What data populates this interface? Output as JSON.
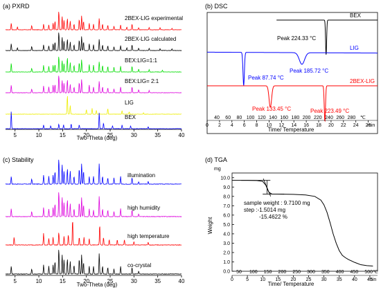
{
  "panels": {
    "a": {
      "label": "(a) PXRD",
      "xlabel": "Two-Theta (deg)",
      "xticks": [
        5,
        10,
        15,
        20,
        25,
        30,
        35,
        40
      ],
      "xlim": [
        3,
        40
      ],
      "traces": [
        {
          "name": "2BEX-LIG experimental",
          "color": "#ff0000",
          "peaks": [
            [
              4.2,
              0.35
            ],
            [
              5.5,
              0.15
            ],
            [
              8.5,
              0.22
            ],
            [
              11,
              0.3
            ],
            [
              12.1,
              0.25
            ],
            [
              13,
              0.35
            ],
            [
              13.4,
              0.45
            ],
            [
              14.2,
              1.0
            ],
            [
              14.9,
              0.7
            ],
            [
              15.3,
              0.5
            ],
            [
              16,
              0.6
            ],
            [
              16.6,
              0.45
            ],
            [
              17.4,
              0.3
            ],
            [
              18.5,
              0.55
            ],
            [
              19,
              0.75
            ],
            [
              19.4,
              0.45
            ],
            [
              20.6,
              0.35
            ],
            [
              21.5,
              0.3
            ],
            [
              22.7,
              0.6
            ],
            [
              23.4,
              0.3
            ],
            [
              24.5,
              0.25
            ],
            [
              25.8,
              0.2
            ],
            [
              27.2,
              0.25
            ],
            [
              28.5,
              0.15
            ],
            [
              29.6,
              0.3
            ],
            [
              31,
              0.12
            ],
            [
              33.2,
              0.12
            ],
            [
              35.5,
              0.1
            ],
            [
              38,
              0.08
            ]
          ]
        },
        {
          "name": "2BEX-LIG calculated",
          "color": "#000000",
          "peaks": [
            [
              4.2,
              0.35
            ],
            [
              5.5,
              0.15
            ],
            [
              8.5,
              0.22
            ],
            [
              11,
              0.3
            ],
            [
              12.1,
              0.25
            ],
            [
              13,
              0.35
            ],
            [
              13.4,
              0.45
            ],
            [
              14.2,
              1.0
            ],
            [
              14.9,
              0.7
            ],
            [
              15.3,
              0.5
            ],
            [
              16,
              0.6
            ],
            [
              16.6,
              0.45
            ],
            [
              17.4,
              0.3
            ],
            [
              18.5,
              0.55
            ],
            [
              19,
              0.75
            ],
            [
              19.4,
              0.45
            ],
            [
              20.6,
              0.35
            ],
            [
              21.5,
              0.3
            ],
            [
              22.7,
              0.6
            ],
            [
              23.4,
              0.3
            ],
            [
              24.5,
              0.25
            ],
            [
              25.8,
              0.2
            ],
            [
              27.2,
              0.25
            ],
            [
              28.5,
              0.15
            ],
            [
              29.6,
              0.3
            ],
            [
              31,
              0.12
            ],
            [
              33.2,
              0.12
            ],
            [
              35.5,
              0.1
            ],
            [
              38,
              0.08
            ]
          ]
        },
        {
          "name": "BEX:LIG=1:1",
          "color": "#00dd00",
          "peaks": [
            [
              4.2,
              0.45
            ],
            [
              8.5,
              0.2
            ],
            [
              11,
              0.35
            ],
            [
              12.1,
              0.3
            ],
            [
              13,
              0.35
            ],
            [
              13.4,
              0.4
            ],
            [
              14.2,
              0.85
            ],
            [
              14.9,
              0.6
            ],
            [
              15.3,
              0.45
            ],
            [
              16,
              0.75
            ],
            [
              16.6,
              0.5
            ],
            [
              17.4,
              0.35
            ],
            [
              18.5,
              0.5
            ],
            [
              19,
              0.65
            ],
            [
              20.6,
              0.4
            ],
            [
              21.5,
              0.35
            ],
            [
              22.7,
              0.55
            ],
            [
              23.4,
              0.35
            ],
            [
              24.5,
              0.3
            ],
            [
              25.8,
              0.25
            ],
            [
              27.2,
              0.3
            ],
            [
              29.6,
              0.3
            ],
            [
              31,
              0.15
            ],
            [
              33.2,
              0.12
            ],
            [
              36,
              0.1
            ]
          ]
        },
        {
          "name": "BEX:LIG= 2:1",
          "color": "#dd00dd",
          "peaks": [
            [
              4.2,
              0.4
            ],
            [
              8.5,
              0.2
            ],
            [
              11,
              0.35
            ],
            [
              12.1,
              0.3
            ],
            [
              13,
              0.4
            ],
            [
              13.4,
              0.45
            ],
            [
              14.2,
              0.95
            ],
            [
              14.9,
              0.65
            ],
            [
              15.3,
              0.5
            ],
            [
              16,
              0.7
            ],
            [
              16.6,
              0.45
            ],
            [
              17.4,
              0.3
            ],
            [
              18.5,
              0.55
            ],
            [
              19,
              0.7
            ],
            [
              20.6,
              0.4
            ],
            [
              21.5,
              0.3
            ],
            [
              22.7,
              0.6
            ],
            [
              23.4,
              0.3
            ],
            [
              24.5,
              0.25
            ],
            [
              25.8,
              0.2
            ],
            [
              27.2,
              0.3
            ],
            [
              29.6,
              0.3
            ],
            [
              31,
              0.15
            ],
            [
              33.2,
              0.12
            ]
          ]
        },
        {
          "name": "LIG",
          "color": "#eeee00",
          "peaks": [
            [
              16,
              1.0
            ],
            [
              16.6,
              0.45
            ],
            [
              20,
              0.25
            ],
            [
              21.2,
              0.3
            ],
            [
              22.1,
              0.2
            ],
            [
              24.5,
              0.3
            ],
            [
              27.5,
              0.18
            ],
            [
              29,
              0.12
            ],
            [
              32,
              0.08
            ]
          ]
        },
        {
          "name": "BEX",
          "color": "#0000ff",
          "peaks": [
            [
              4.2,
              0.9
            ],
            [
              11,
              0.2
            ],
            [
              12.5,
              0.15
            ],
            [
              14.2,
              0.25
            ],
            [
              15.2,
              0.2
            ],
            [
              16.8,
              0.25
            ],
            [
              18.5,
              0.2
            ],
            [
              22.7,
              0.85
            ],
            [
              23.6,
              0.3
            ],
            [
              25.5,
              0.15
            ],
            [
              27.5,
              0.2
            ],
            [
              29.3,
              0.15
            ],
            [
              33,
              0.1
            ]
          ]
        }
      ]
    },
    "b": {
      "label": "(b) DSC",
      "xlabel": "Time/ Temperature",
      "temp_ticks": [
        "40",
        "60",
        "80",
        "100",
        "120",
        "140",
        "160",
        "180",
        "200",
        "220",
        "240",
        "260",
        "280"
      ],
      "temp_unit": "℃",
      "time_ticks": [
        "0",
        "2",
        "4",
        "6",
        "8",
        "10",
        "12",
        "14",
        "16",
        "18",
        "20",
        "22",
        "24",
        "26"
      ],
      "time_unit": "min",
      "xlim": [
        0,
        27.5
      ],
      "traces": [
        {
          "name": "BEX",
          "color": "#000000",
          "peaks": [
            {
              "label": "Peak 224.33 °C",
              "t": 19.2,
              "depth": 1.0
            }
          ]
        },
        {
          "name": "LIG",
          "color": "#0000ff",
          "peaks": [
            {
              "label": "Peak 87.74 °C",
              "t": 5.9,
              "depth": 1.0
            },
            {
              "label": "Peak 185.72 °C",
              "t": 15.3,
              "depth": 0.35
            }
          ]
        },
        {
          "name": "2BEX-LIG",
          "color": "#ff0000",
          "peaks": [
            {
              "label": "Peak 133.45 °C",
              "t": 10.2,
              "depth": 0.6
            },
            {
              "label": "Peak 223.49 °C",
              "t": 19.0,
              "depth": 1.0
            }
          ]
        }
      ]
    },
    "c": {
      "label": "(c) Stability",
      "xlabel": "Two-Theta (deg)",
      "xticks": [
        5,
        10,
        15,
        20,
        25,
        30,
        35,
        40
      ],
      "xlim": [
        3,
        40
      ],
      "traces": [
        {
          "name": "illumination",
          "color": "#0000ff"
        },
        {
          "name": "high humidity",
          "color": "#dd00dd"
        },
        {
          "name": "high temperature",
          "color": "#ff0000"
        },
        {
          "name": "co-crystal",
          "color": "#000000"
        }
      ]
    },
    "d": {
      "label": "(d) TGA",
      "ylabel": "Weight",
      "yunit": "mg",
      "yticks": [
        "0.0",
        "1.0",
        "2.0",
        "3.0",
        "4.0",
        "5.0",
        "6.0",
        "7.0",
        "8.0",
        "9.0",
        "10.0"
      ],
      "ylim": [
        0,
        10.5
      ],
      "xlabel": "Time/ Temperature",
      "temp_ticks": [
        "50",
        "100",
        "150",
        "200",
        "250",
        "300",
        "350",
        "400",
        "450",
        "500"
      ],
      "temp_unit": "℃",
      "time_ticks": [
        "0",
        "5",
        "10",
        "15",
        "20",
        "25",
        "30",
        "35",
        "40",
        "45"
      ],
      "time_unit": "min",
      "xlim": [
        0,
        47.5
      ],
      "annotation": [
        "sample weight : 9.7100 mg",
        "step :-1.5014 mg",
        "-15.4622 %"
      ],
      "curve": [
        [
          0,
          9.71
        ],
        [
          5,
          9.71
        ],
        [
          8,
          9.7
        ],
        [
          10,
          9.6
        ],
        [
          11,
          9.2
        ],
        [
          12,
          8.45
        ],
        [
          13,
          8.25
        ],
        [
          20,
          8.22
        ],
        [
          24,
          8.15
        ],
        [
          27,
          8.0
        ],
        [
          29,
          7.6
        ],
        [
          30,
          7.1
        ],
        [
          31,
          6.3
        ],
        [
          32,
          5.2
        ],
        [
          33,
          4.0
        ],
        [
          34,
          3.0
        ],
        [
          35,
          2.2
        ],
        [
          36,
          1.7
        ],
        [
          37,
          1.45
        ],
        [
          38,
          1.25
        ],
        [
          40,
          0.95
        ],
        [
          42,
          0.7
        ],
        [
          44,
          0.6
        ],
        [
          46,
          0.55
        ]
      ]
    }
  }
}
